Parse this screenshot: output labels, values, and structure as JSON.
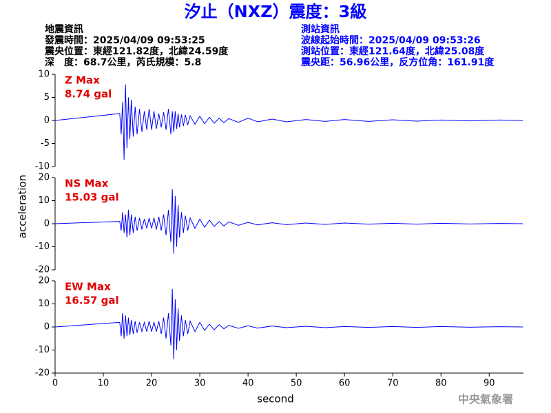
{
  "header": {
    "title": "汐止（NXZ）震度：3級",
    "left": [
      "地震資訊",
      "發震時間：2025/04/09 09:53:25",
      "震央位置：東經121.82度，北緯24.59度",
      "深　度：68.7公里，芮氏規模：5.8"
    ],
    "right": [
      "測站資訊",
      "波線起始時間：2025/04/09 09:53:26",
      "測站位置：東經121.64度，北緯25.08度",
      "震央距：56.96公里，反方位角：161.91度"
    ],
    "logo": "中央氣象署"
  },
  "chart_data": [
    {
      "type": "line",
      "annotation": [
        "Z Max",
        "8.74 gal"
      ],
      "annotation_color": "#e00000",
      "color": "#0000ff",
      "xlim": [
        0,
        97.1
      ],
      "ylim": [
        -10,
        10
      ],
      "yticks": [
        -10,
        -5,
        0,
        5,
        10
      ],
      "x": [
        0,
        13.4,
        13.7,
        14.0,
        14.3,
        14.6,
        14.9,
        15.2,
        15.5,
        15.8,
        16.2,
        16.6,
        17.0,
        17.5,
        18,
        18.5,
        19,
        19.5,
        20,
        20.5,
        21,
        21.5,
        22,
        22.5,
        23,
        23.5,
        24.0,
        24.3,
        24.6,
        24.9,
        25.2,
        25.5,
        25.8,
        26.2,
        26.6,
        27.0,
        27.5,
        28.0,
        29,
        30,
        31,
        32,
        33,
        34,
        35,
        36,
        38,
        40,
        42,
        45,
        48,
        52,
        56,
        60,
        65,
        70,
        75,
        80,
        86,
        92,
        97
      ],
      "values": [
        0,
        1.5,
        -3,
        4,
        -8.5,
        7.8,
        -6,
        5,
        -4,
        4.5,
        -3.5,
        3,
        -3,
        2.5,
        -2.5,
        2,
        -2,
        2.5,
        -2,
        2,
        -1.8,
        1.5,
        -1.5,
        1.8,
        -2,
        2.5,
        -3,
        2,
        -2.5,
        2,
        -1.8,
        1.5,
        -1.5,
        1.3,
        -1.2,
        1.2,
        -1,
        1,
        -0.8,
        0.9,
        -0.7,
        0.7,
        -0.6,
        0.5,
        -0.5,
        0.4,
        -0.4,
        0.5,
        -0.3,
        0.3,
        -0.3,
        0.2,
        -0.2,
        0.2,
        -0.2,
        0.15,
        -0.15,
        0.1,
        -0.1,
        0.1,
        0
      ]
    },
    {
      "type": "line",
      "annotation": [
        "NS Max",
        "15.03 gal"
      ],
      "annotation_color": "#e00000",
      "color": "#0000ff",
      "ylabel": "acceleration",
      "xlim": [
        0,
        97.1
      ],
      "ylim": [
        -20,
        20
      ],
      "yticks": [
        -20,
        -10,
        0,
        10,
        20
      ],
      "x": [
        0,
        13.4,
        13.7,
        14.0,
        14.3,
        14.6,
        14.9,
        15.2,
        15.5,
        15.8,
        16.2,
        16.6,
        17.0,
        17.5,
        18,
        18.5,
        19,
        19.5,
        20,
        20.5,
        21,
        21.5,
        22,
        22.5,
        23,
        23.5,
        24.0,
        24.3,
        24.6,
        24.9,
        25.2,
        25.5,
        25.8,
        26.2,
        26.6,
        27.0,
        27.5,
        28.0,
        29,
        30,
        31,
        32,
        33,
        34,
        35,
        36,
        38,
        40,
        42,
        45,
        48,
        52,
        56,
        60,
        65,
        70,
        75,
        80,
        86,
        92,
        97
      ],
      "values": [
        0,
        1,
        -3,
        5,
        -4,
        4,
        -6,
        6,
        -5,
        4,
        -4,
        3,
        -3,
        2.5,
        -2.5,
        2,
        -2,
        2.5,
        -2,
        2.5,
        -2.5,
        3,
        -3,
        4,
        -5,
        6,
        -8,
        15,
        -13,
        12,
        -10,
        8,
        -6,
        5,
        -4,
        3.5,
        -3,
        2.5,
        -2,
        2,
        -1.5,
        1.5,
        -1.2,
        1,
        -1,
        0.8,
        -0.7,
        0.6,
        -0.5,
        0.4,
        -0.4,
        0.3,
        -0.3,
        0.3,
        -0.2,
        0.2,
        -0.2,
        0.2,
        -0.1,
        0.1,
        0
      ]
    },
    {
      "type": "line",
      "annotation": [
        "EW Max",
        "16.57 gal"
      ],
      "annotation_color": "#e00000",
      "color": "#0000ff",
      "xlabel": "second",
      "xlim": [
        0,
        97.1
      ],
      "ylim": [
        -20,
        20
      ],
      "yticks": [
        -20,
        -10,
        0,
        10,
        20
      ],
      "xticks": [
        0,
        10,
        20,
        30,
        40,
        50,
        60,
        70,
        80,
        90
      ],
      "x": [
        0,
        13.4,
        13.7,
        14.0,
        14.3,
        14.6,
        14.9,
        15.2,
        15.5,
        15.8,
        16.2,
        16.6,
        17.0,
        17.5,
        18,
        18.5,
        19,
        19.5,
        20,
        20.5,
        21,
        21.5,
        22,
        22.5,
        23,
        23.5,
        24.0,
        24.3,
        24.6,
        24.9,
        25.2,
        25.5,
        25.8,
        26.2,
        26.6,
        27.0,
        27.5,
        28.0,
        29,
        30,
        31,
        32,
        33,
        34,
        35,
        36,
        38,
        40,
        42,
        45,
        48,
        52,
        56,
        60,
        65,
        70,
        75,
        80,
        86,
        92,
        97
      ],
      "values": [
        0,
        2,
        -4,
        6,
        -5,
        5,
        -4,
        4,
        -3.5,
        3,
        -3,
        2.5,
        -2.5,
        2,
        -2,
        2,
        -2,
        2.5,
        -2,
        2,
        -2,
        2.5,
        -3,
        4,
        -5,
        6,
        -8,
        16.5,
        -14,
        12,
        -10,
        8,
        -6,
        5,
        -4,
        3,
        -3,
        2.5,
        -2,
        2,
        -1.5,
        1.2,
        -1.2,
        1,
        -0.8,
        0.7,
        -0.6,
        0.5,
        -0.5,
        0.4,
        -0.3,
        0.3,
        -0.3,
        0.2,
        -0.2,
        0.2,
        -0.2,
        0.2,
        -0.1,
        0.1,
        0
      ]
    }
  ]
}
